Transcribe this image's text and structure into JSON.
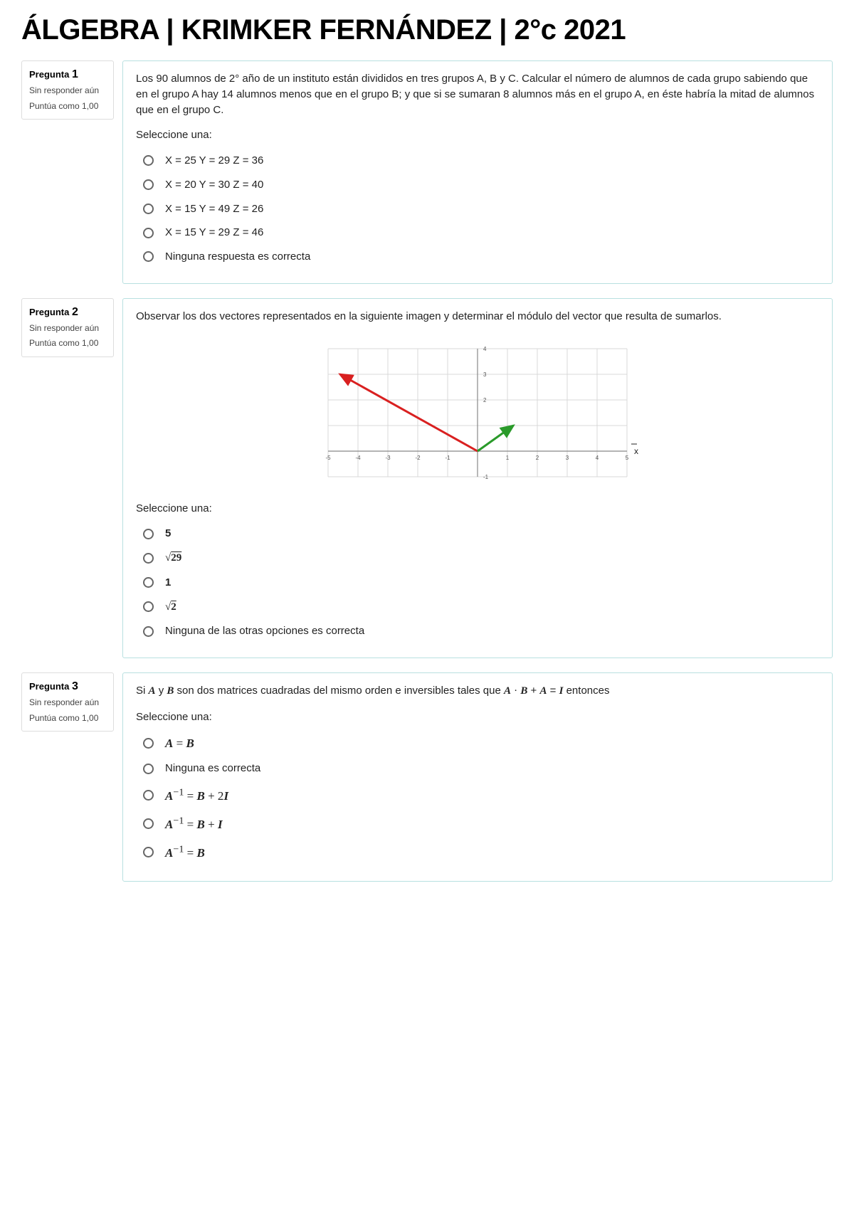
{
  "title": "ÁLGEBRA | KRIMKER FERNÁNDEZ | 2°c 2021",
  "questions": [
    {
      "label_prefix": "Pregunta",
      "number": "1",
      "status": "Sin responder aún",
      "points": "Puntúa como 1,00",
      "prompt": "Los 90 alumnos de 2° año de un instituto están divididos en tres grupos A, B y C. Calcular el número de alumnos de cada grupo sabiendo que en el grupo A hay 14 alumnos menos que en el grupo B; y que si se sumaran 8 alumnos más en el grupo A, en éste habría la mitad de alumnos que en el grupo C.",
      "select_label": "Seleccione una:",
      "options": [
        "X = 25   Y = 29    Z = 36",
        "X = 20   Y = 30    Z = 40",
        "X = 15    Y = 49    Z = 26",
        "X = 15    Y = 29    Z = 46",
        "Ninguna respuesta es correcta"
      ]
    },
    {
      "label_prefix": "Pregunta",
      "number": "2",
      "status": "Sin responder aún",
      "points": "Puntúa como 1,00",
      "prompt": "Observar los dos vectores representados en la siguiente imagen y determinar el módulo del vector que resulta de sumarlos.",
      "select_label": "Seleccione una:",
      "options_html": [
        "<b>5</b>",
        "<b><span style='font-family:serif'>&radic;<span style='text-decoration:overline'>29</span></span></b>",
        "<b>1</b>",
        "<b><span style='font-family:serif'>&radic;<span style='text-decoration:overline'>2</span></span></b>",
        "Ninguna de las otras opciones es correcta"
      ],
      "chart": {
        "xlim": [
          -5,
          5
        ],
        "ylim": [
          -1,
          4
        ],
        "xticks": [
          -5,
          -4,
          -3,
          -2,
          -1,
          1,
          2,
          3,
          4,
          5
        ],
        "yticks": [
          -1,
          2,
          3,
          4
        ],
        "xlabel": "x",
        "grid_color": "#d8d8d8",
        "axis_color": "#888",
        "tick_font": 8,
        "vectors": [
          {
            "from": [
              0,
              0
            ],
            "to": [
              -4.6,
              3
            ],
            "color": "#d92020",
            "width": 3
          },
          {
            "from": [
              0,
              0
            ],
            "to": [
              1.2,
              1
            ],
            "color": "#2a9a2a",
            "width": 3
          }
        ]
      }
    },
    {
      "label_prefix": "Pregunta",
      "number": "3",
      "status": "Sin responder aún",
      "points": "Puntúa como 1,00",
      "prompt_html": "Si <span class='math math-b'>A</span> y <span class='math math-b'>B</span> son dos matrices cuadradas del mismo orden e inversibles tales que <span class='math math-b'>A</span> <span class='math'>·</span> <span class='math math-b'>B</span> + <span class='math math-b'>A</span> = <span class='math math-b'>I</span>  entonces",
      "select_label": "Seleccione una:",
      "options_html": [
        "<span class='math'><span class='math-b'>A</span> = <span class='math-b'>B</span></span>",
        "Ninguna es correcta",
        "<span class='math'><span class='math-b'>A</span><sup>&minus;1</sup> = <span class='math-b'>B</span> + 2<span class='math-b'>I</span></span>",
        "<span class='math'><span class='math-b'>A</span><sup>&minus;1</sup> = <span class='math-b'>B</span> + <span class='math-b'>I</span></span>",
        "<span class='math'><span class='math-b'>A</span><sup>&minus;1</sup> = <span class='math-b'>B</span></span>"
      ]
    }
  ]
}
